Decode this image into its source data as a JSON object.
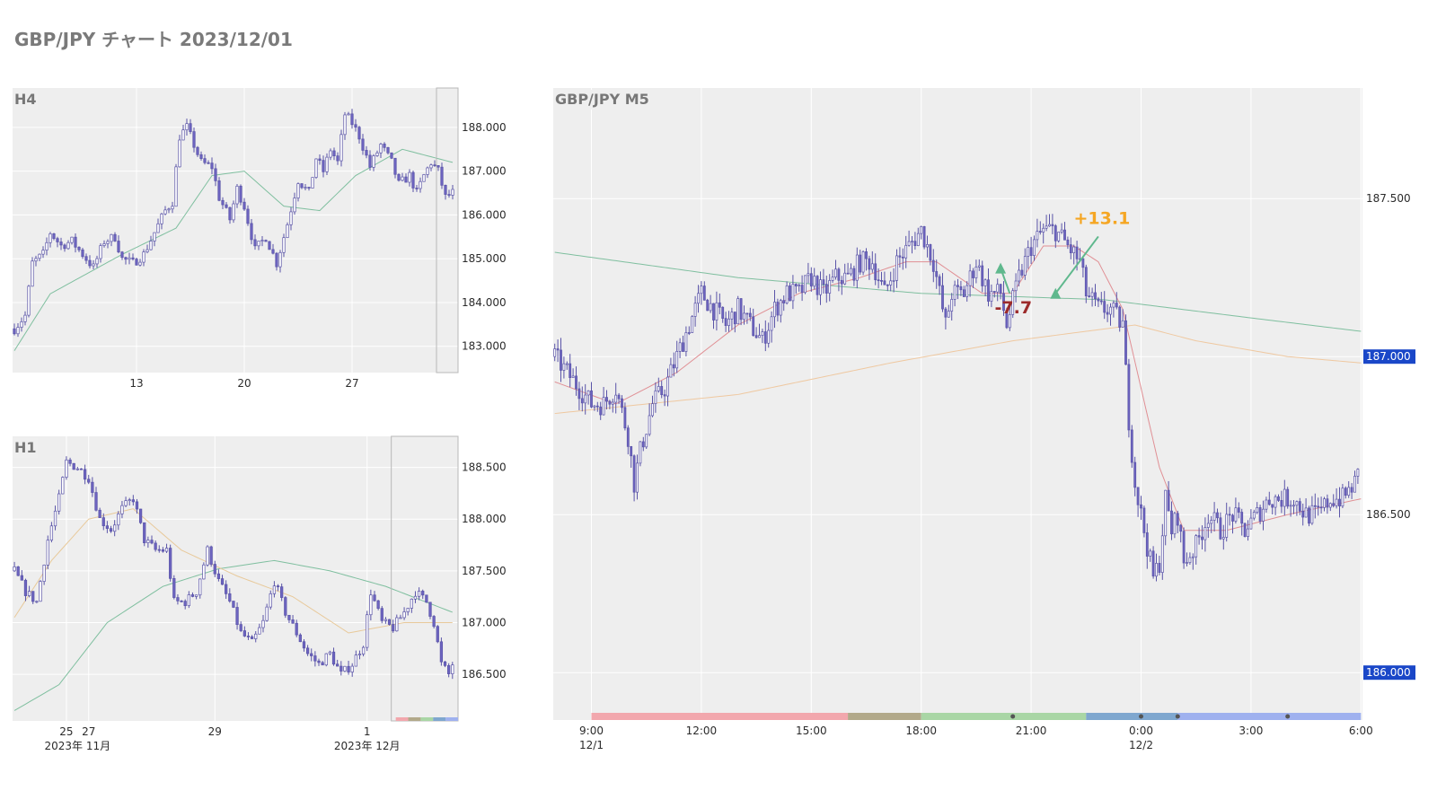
{
  "page": {
    "title": "GBP/JPY チャート 2023/12/01"
  },
  "chart_data": [
    {
      "id": "h4",
      "type": "candlestick",
      "title": "H4",
      "ylim": [
        182.4,
        188.9
      ],
      "y_ticks": [
        "188.000",
        "187.000",
        "186.000",
        "185.000",
        "184.000",
        "183.000"
      ],
      "y_tick_values": [
        188,
        187,
        186,
        185,
        184,
        183
      ],
      "x_ticks": [
        {
          "i": 34,
          "label": "13"
        },
        {
          "i": 64,
          "label": "20"
        },
        {
          "i": 94,
          "label": "27"
        }
      ],
      "candle_count": 123,
      "highlight_from_index": 118,
      "ohlc_path": [
        [
          0,
          183.4
        ],
        [
          3,
          183.7
        ],
        [
          5,
          184.9
        ],
        [
          8,
          185.1
        ],
        [
          10,
          185.6
        ],
        [
          13,
          185.3
        ],
        [
          16,
          185.4
        ],
        [
          19,
          185.1
        ],
        [
          22,
          184.8
        ],
        [
          25,
          185.4
        ],
        [
          28,
          185.5
        ],
        [
          30,
          185.0
        ],
        [
          33,
          184.9
        ],
        [
          36,
          185.1
        ],
        [
          39,
          185.6
        ],
        [
          42,
          186.1
        ],
        [
          44,
          186.3
        ],
        [
          46,
          187.8
        ],
        [
          48,
          188.0
        ],
        [
          50,
          187.6
        ],
        [
          52,
          187.2
        ],
        [
          55,
          187.1
        ],
        [
          57,
          186.4
        ],
        [
          60,
          185.9
        ],
        [
          62,
          186.6
        ],
        [
          64,
          186.2
        ],
        [
          67,
          185.2
        ],
        [
          70,
          185.5
        ],
        [
          73,
          184.9
        ],
        [
          76,
          185.8
        ],
        [
          79,
          186.8
        ],
        [
          82,
          186.5
        ],
        [
          84,
          187.3
        ],
        [
          86,
          187.0
        ],
        [
          88,
          187.5
        ],
        [
          90,
          187.2
        ],
        [
          92,
          188.3
        ],
        [
          94,
          188.1
        ],
        [
          96,
          187.8
        ],
        [
          99,
          187.1
        ],
        [
          102,
          187.6
        ],
        [
          105,
          187.2
        ],
        [
          107,
          186.7
        ],
        [
          110,
          186.9
        ],
        [
          112,
          186.5
        ],
        [
          114,
          186.9
        ],
        [
          116,
          187.2
        ],
        [
          118,
          187.0
        ],
        [
          120,
          186.4
        ],
        [
          122,
          186.5
        ]
      ],
      "ma_lines": [
        {
          "color": "#7fbf9f",
          "points": [
            [
              0,
              182.9
            ],
            [
              10,
              184.2
            ],
            [
              30,
              185.1
            ],
            [
              45,
              185.7
            ],
            [
              55,
              186.9
            ],
            [
              64,
              187.0
            ],
            [
              75,
              186.2
            ],
            [
              85,
              186.1
            ],
            [
              95,
              186.9
            ],
            [
              108,
              187.5
            ],
            [
              122,
              187.2
            ]
          ]
        }
      ]
    },
    {
      "id": "h1",
      "type": "candlestick",
      "title": "H1",
      "ylim": [
        186.05,
        188.8
      ],
      "y_ticks": [
        "188.500",
        "188.000",
        "187.500",
        "187.000",
        "186.500"
      ],
      "y_tick_values": [
        188.5,
        188.0,
        187.5,
        187.0,
        186.5
      ],
      "x_ticks": [
        {
          "i": 14,
          "label": "25",
          "sub": ""
        },
        {
          "i": 20,
          "label": "27",
          "sub": ""
        },
        {
          "i": 54,
          "label": "29",
          "sub": ""
        },
        {
          "i": 95,
          "label": "1",
          "sub": ""
        }
      ],
      "x_subticks": [
        {
          "i": 17,
          "label": "2023年 11月"
        },
        {
          "i": 95,
          "label": "2023年 12月"
        }
      ],
      "candle_count": 119,
      "highlight_from_index": 102,
      "session_bar": [
        "#f2a7ad",
        "#b2a98a",
        "#a9d6a5",
        "#7fa7cf",
        "#9fb1ef"
      ],
      "ohlc_path": [
        [
          0,
          187.5
        ],
        [
          3,
          187.3
        ],
        [
          6,
          187.2
        ],
        [
          9,
          187.8
        ],
        [
          12,
          188.2
        ],
        [
          14,
          188.55
        ],
        [
          17,
          188.5
        ],
        [
          20,
          188.4
        ],
        [
          23,
          188.0
        ],
        [
          26,
          187.9
        ],
        [
          29,
          188.1
        ],
        [
          32,
          188.2
        ],
        [
          35,
          187.8
        ],
        [
          38,
          187.7
        ],
        [
          41,
          187.7
        ],
        [
          43,
          187.2
        ],
        [
          46,
          187.2
        ],
        [
          49,
          187.3
        ],
        [
          52,
          187.7
        ],
        [
          55,
          187.4
        ],
        [
          58,
          187.2
        ],
        [
          61,
          186.9
        ],
        [
          64,
          186.8
        ],
        [
          67,
          187.0
        ],
        [
          70,
          187.4
        ],
        [
          73,
          187.1
        ],
        [
          76,
          186.9
        ],
        [
          79,
          186.7
        ],
        [
          82,
          186.6
        ],
        [
          85,
          186.7
        ],
        [
          88,
          186.5
        ],
        [
          91,
          186.6
        ],
        [
          94,
          186.8
        ],
        [
          96,
          187.3
        ],
        [
          99,
          187.0
        ],
        [
          102,
          186.95
        ],
        [
          105,
          187.1
        ],
        [
          108,
          187.3
        ],
        [
          111,
          187.2
        ],
        [
          113,
          187.0
        ],
        [
          115,
          186.6
        ],
        [
          117,
          186.5
        ],
        [
          118,
          186.6
        ]
      ],
      "ma_lines": [
        {
          "color": "#7fbf9f",
          "points": [
            [
              0,
              186.15
            ],
            [
              12,
              186.4
            ],
            [
              25,
              187.0
            ],
            [
              40,
              187.35
            ],
            [
              55,
              187.52
            ],
            [
              70,
              187.6
            ],
            [
              85,
              187.5
            ],
            [
              100,
              187.35
            ],
            [
              118,
              187.1
            ]
          ]
        },
        {
          "color": "#e8c99a",
          "points": [
            [
              0,
              187.05
            ],
            [
              10,
              187.6
            ],
            [
              20,
              188.0
            ],
            [
              32,
              188.1
            ],
            [
              45,
              187.7
            ],
            [
              60,
              187.45
            ],
            [
              75,
              187.25
            ],
            [
              90,
              186.9
            ],
            [
              105,
              187.0
            ],
            [
              118,
              187.0
            ]
          ]
        }
      ]
    },
    {
      "id": "m5",
      "type": "candlestick",
      "title": "GBP/JPY M5",
      "ylim": [
        185.85,
        187.85
      ],
      "y_ticks": [
        "187.500",
        "187.000",
        "186.500",
        "186.000"
      ],
      "y_tick_values": [
        187.5,
        187.0,
        186.5,
        186.0
      ],
      "y_tick_highlight": [
        false,
        true,
        false,
        true
      ],
      "x_ticks": [
        {
          "i": 12,
          "label": "9:00",
          "sub": "12/1"
        },
        {
          "i": 48,
          "label": "12:00",
          "sub": ""
        },
        {
          "i": 84,
          "label": "15:00",
          "sub": ""
        },
        {
          "i": 120,
          "label": "18:00",
          "sub": ""
        },
        {
          "i": 156,
          "label": "21:00",
          "sub": ""
        },
        {
          "i": 192,
          "label": "0:00",
          "sub": "12/2"
        },
        {
          "i": 228,
          "label": "3:00",
          "sub": ""
        },
        {
          "i": 264,
          "label": "6:00",
          "sub": ""
        }
      ],
      "candle_count": 264,
      "sessions": [
        {
          "from": 12,
          "to": 96,
          "color": "#f2a7ad"
        },
        {
          "from": 96,
          "to": 120,
          "color": "#b2a98a"
        },
        {
          "from": 120,
          "to": 174,
          "color": "#a9d6a5"
        },
        {
          "from": 174,
          "to": 204,
          "color": "#7fa7cf"
        },
        {
          "from": 204,
          "to": 264,
          "color": "#9fb1ef"
        }
      ],
      "session_dots": [
        150,
        192,
        204,
        240
      ],
      "ohlc_path": [
        [
          0,
          187.0
        ],
        [
          4,
          186.95
        ],
        [
          8,
          186.9
        ],
        [
          12,
          186.85
        ],
        [
          16,
          186.85
        ],
        [
          20,
          186.9
        ],
        [
          24,
          186.75
        ],
        [
          26,
          186.6
        ],
        [
          28,
          186.7
        ],
        [
          32,
          186.85
        ],
        [
          36,
          186.9
        ],
        [
          40,
          187.0
        ],
        [
          44,
          187.1
        ],
        [
          48,
          187.2
        ],
        [
          52,
          187.15
        ],
        [
          56,
          187.1
        ],
        [
          60,
          187.15
        ],
        [
          64,
          187.1
        ],
        [
          68,
          187.05
        ],
        [
          72,
          187.15
        ],
        [
          76,
          187.2
        ],
        [
          80,
          187.2
        ],
        [
          84,
          187.25
        ],
        [
          88,
          187.2
        ],
        [
          92,
          187.25
        ],
        [
          96,
          187.25
        ],
        [
          100,
          187.3
        ],
        [
          104,
          187.3
        ],
        [
          108,
          187.2
        ],
        [
          112,
          187.3
        ],
        [
          116,
          187.35
        ],
        [
          120,
          187.4
        ],
        [
          124,
          187.3
        ],
        [
          128,
          187.1
        ],
        [
          130,
          187.2
        ],
        [
          134,
          187.2
        ],
        [
          138,
          187.3
        ],
        [
          142,
          187.2
        ],
        [
          146,
          187.2
        ],
        [
          148,
          187.1
        ],
        [
          152,
          187.25
        ],
        [
          156,
          187.35
        ],
        [
          160,
          187.4
        ],
        [
          164,
          187.4
        ],
        [
          168,
          187.35
        ],
        [
          172,
          187.3
        ],
        [
          174,
          187.2
        ],
        [
          178,
          187.15
        ],
        [
          182,
          187.15
        ],
        [
          186,
          187.1
        ],
        [
          188,
          186.8
        ],
        [
          190,
          186.6
        ],
        [
          192,
          186.5
        ],
        [
          194,
          186.4
        ],
        [
          196,
          186.3
        ],
        [
          198,
          186.35
        ],
        [
          200,
          186.55
        ],
        [
          202,
          186.45
        ],
        [
          204,
          186.5
        ],
        [
          206,
          186.35
        ],
        [
          210,
          186.4
        ],
        [
          214,
          186.5
        ],
        [
          218,
          186.45
        ],
        [
          222,
          186.5
        ],
        [
          226,
          186.45
        ],
        [
          230,
          186.5
        ],
        [
          234,
          186.55
        ],
        [
          238,
          186.55
        ],
        [
          242,
          186.55
        ],
        [
          246,
          186.5
        ],
        [
          250,
          186.5
        ],
        [
          254,
          186.55
        ],
        [
          258,
          186.55
        ],
        [
          262,
          186.6
        ],
        [
          264,
          186.65
        ]
      ],
      "ma_lines": [
        {
          "color": "#7fbf9f",
          "points": [
            [
              0,
              187.33
            ],
            [
              60,
              187.25
            ],
            [
              120,
              187.2
            ],
            [
              180,
              187.18
            ],
            [
              230,
              187.12
            ],
            [
              264,
              187.08
            ]
          ]
        },
        {
          "color": "#efc8a0",
          "points": [
            [
              0,
              186.82
            ],
            [
              60,
              186.88
            ],
            [
              110,
              186.98
            ],
            [
              150,
              187.05
            ],
            [
              190,
              187.1
            ],
            [
              210,
              187.05
            ],
            [
              240,
              187.0
            ],
            [
              264,
              186.98
            ]
          ]
        },
        {
          "color": "#e08f94",
          "points": [
            [
              0,
              186.92
            ],
            [
              20,
              186.85
            ],
            [
              40,
              186.95
            ],
            [
              60,
              187.1
            ],
            [
              80,
              187.2
            ],
            [
              100,
              187.25
            ],
            [
              115,
              187.3
            ],
            [
              125,
              187.3
            ],
            [
              140,
              187.2
            ],
            [
              150,
              187.2
            ],
            [
              160,
              187.35
            ],
            [
              170,
              187.35
            ],
            [
              178,
              187.3
            ],
            [
              186,
              187.15
            ],
            [
              192,
              186.9
            ],
            [
              198,
              186.65
            ],
            [
              206,
              186.45
            ],
            [
              220,
              186.45
            ],
            [
              240,
              186.5
            ],
            [
              264,
              186.55
            ]
          ]
        }
      ],
      "trades": [
        {
          "label": "-7.7",
          "color": "#9c2a2a",
          "entry": [
            146,
            187.28
          ],
          "exit": [
            149,
            187.2
          ]
        },
        {
          "label": "+13.1",
          "color": "#f5a623",
          "entry": [
            164,
            187.2
          ],
          "exit": [
            178,
            187.38
          ]
        }
      ]
    }
  ]
}
